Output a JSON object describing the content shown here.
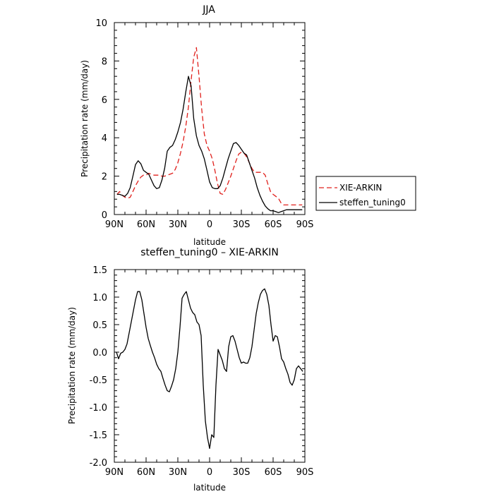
{
  "chart_data": [
    {
      "type": "line",
      "title": "JJA",
      "xlabel": "latitude",
      "ylabel": "Precipitation rate (mm/day)",
      "xlim": [
        90,
        -90
      ],
      "ylim": [
        0,
        10
      ],
      "xticks": [
        90,
        60,
        30,
        0,
        -30,
        -60,
        -90
      ],
      "xtick_labels": [
        "90N",
        "60N",
        "30N",
        "0",
        "30S",
        "60S",
        "90S"
      ],
      "yticks": [
        0,
        2,
        4,
        6,
        8,
        10
      ],
      "ytick_labels": [
        "0",
        "2",
        "4",
        "6",
        "8",
        "10"
      ],
      "legend": "right",
      "series": [
        {
          "name": "XIE-ARKIN",
          "color": "#e0201c",
          "dash": "dashed",
          "x": [
            87.5,
            85,
            82.5,
            80,
            77.5,
            75,
            72.5,
            70,
            67.5,
            65,
            62.5,
            60,
            57.5,
            55,
            52.5,
            50,
            47.5,
            45,
            42.5,
            40,
            37.5,
            35,
            32.5,
            30,
            27.5,
            25,
            22.5,
            20,
            17.5,
            15,
            12.5,
            10,
            7.5,
            5,
            2.5,
            0,
            -2.5,
            -5,
            -7.5,
            -10,
            -12.5,
            -15,
            -17.5,
            -20,
            -22.5,
            -25,
            -27.5,
            -30,
            -32.5,
            -35,
            -37.5,
            -40,
            -42.5,
            -45,
            -47.5,
            -50,
            -52.5,
            -55,
            -57.5,
            -60,
            -62.5,
            -65,
            -67.5,
            -70,
            -72.5,
            -75,
            -77.5,
            -80,
            -82.5,
            -85,
            -87.5
          ],
          "y": [
            1.05,
            1.2,
            1.0,
            0.9,
            0.85,
            0.9,
            1.2,
            1.5,
            1.75,
            1.95,
            2.05,
            2.05,
            2.15,
            2.1,
            2.05,
            2.05,
            2.05,
            2.0,
            2.0,
            2.05,
            2.1,
            2.15,
            2.35,
            2.7,
            3.2,
            3.8,
            4.6,
            5.6,
            7.0,
            8.2,
            8.7,
            7.2,
            5.5,
            4.2,
            3.6,
            3.3,
            2.9,
            2.3,
            1.6,
            1.1,
            1.05,
            1.3,
            1.65,
            2.0,
            2.4,
            2.8,
            3.15,
            3.25,
            3.2,
            3.0,
            2.7,
            2.4,
            2.2,
            2.2,
            2.2,
            2.2,
            2.05,
            1.6,
            1.2,
            1.05,
            0.95,
            0.85,
            0.6,
            0.5,
            0.5,
            0.5,
            0.5,
            0.5,
            0.5,
            0.5,
            0.5
          ]
        },
        {
          "name": "steffen_tuning0",
          "color": "#000000",
          "dash": "solid",
          "x": [
            87.5,
            85,
            82.5,
            80,
            77.5,
            75,
            72.5,
            70,
            67.5,
            65,
            62.5,
            60,
            57.5,
            55,
            52.5,
            50,
            47.5,
            45,
            42.5,
            40,
            37.5,
            35,
            32.5,
            30,
            27.5,
            25,
            22.5,
            20,
            17.5,
            15,
            12.5,
            10,
            7.5,
            5,
            2.5,
            0,
            -2.5,
            -5,
            -7.5,
            -10,
            -12.5,
            -15,
            -17.5,
            -20,
            -22.5,
            -25,
            -27.5,
            -30,
            -32.5,
            -35,
            -37.5,
            -40,
            -42.5,
            -45,
            -47.5,
            -50,
            -52.5,
            -55,
            -57.5,
            -60,
            -62.5,
            -65,
            -67.5,
            -70,
            -72.5,
            -75,
            -77.5,
            -80,
            -82.5,
            -85,
            -87.5
          ],
          "y": [
            1.05,
            1.05,
            1.0,
            0.95,
            1.1,
            1.4,
            2.0,
            2.6,
            2.8,
            2.65,
            2.3,
            2.2,
            2.1,
            1.8,
            1.5,
            1.35,
            1.4,
            1.8,
            2.4,
            3.3,
            3.5,
            3.6,
            3.9,
            4.3,
            4.8,
            5.5,
            6.4,
            7.2,
            6.7,
            5.0,
            4.1,
            3.6,
            3.3,
            2.9,
            2.3,
            1.7,
            1.4,
            1.35,
            1.35,
            1.5,
            1.9,
            2.4,
            2.9,
            3.3,
            3.7,
            3.75,
            3.6,
            3.4,
            3.2,
            3.1,
            2.7,
            2.3,
            1.9,
            1.4,
            1.0,
            0.7,
            0.45,
            0.3,
            0.2,
            0.2,
            0.15,
            0.1,
            0.15,
            0.2,
            0.25,
            0.25,
            0.25,
            0.25,
            0.25,
            0.25,
            0.25
          ]
        }
      ]
    },
    {
      "type": "line",
      "title": "steffen_tuning0 – XIE-ARKIN",
      "xlabel": "latitude",
      "ylabel": "Precipitation rate (mm/day)",
      "xlim": [
        90,
        -90
      ],
      "ylim": [
        -2.0,
        1.5
      ],
      "xticks": [
        90,
        60,
        30,
        0,
        -30,
        -60,
        -90
      ],
      "xtick_labels": [
        "90N",
        "60N",
        "30N",
        "0",
        "30S",
        "60S",
        "90S"
      ],
      "yticks": [
        -2.0,
        -1.5,
        -1.0,
        -0.5,
        0.0,
        0.5,
        1.0,
        1.5
      ],
      "ytick_labels": [
        "-2.0",
        "-1.5",
        "-1.0",
        "-0.5",
        "0.0",
        "0.5",
        "1.0",
        "1.5"
      ],
      "series": [
        {
          "color": "#000000",
          "dash": "solid",
          "x": [
            88,
            86,
            84,
            82,
            80,
            78,
            76,
            74,
            72,
            70,
            68,
            66,
            64,
            62,
            60,
            58,
            56,
            54,
            52,
            50,
            48,
            46,
            44,
            42,
            40,
            38,
            36,
            34,
            32,
            30,
            28,
            26,
            24,
            22,
            20,
            18,
            16,
            14,
            12,
            10,
            8,
            6,
            4,
            2,
            0,
            -2,
            -4,
            -6,
            -8,
            -10,
            -12,
            -14,
            -16,
            -18,
            -20,
            -22,
            -24,
            -26,
            -28,
            -30,
            -32,
            -34,
            -36,
            -38,
            -40,
            -42,
            -44,
            -46,
            -48,
            -50,
            -52,
            -54,
            -56,
            -58,
            -60,
            -62,
            -64,
            -66,
            -68,
            -70,
            -72,
            -74,
            -76,
            -78,
            -80,
            -82,
            -84,
            -86,
            -88
          ],
          "y": [
            0.0,
            -0.12,
            -0.02,
            0.0,
            0.05,
            0.15,
            0.35,
            0.55,
            0.75,
            0.95,
            1.1,
            1.1,
            0.95,
            0.7,
            0.45,
            0.25,
            0.12,
            0.0,
            -0.1,
            -0.22,
            -0.3,
            -0.35,
            -0.48,
            -0.6,
            -0.7,
            -0.72,
            -0.62,
            -0.5,
            -0.3,
            0.0,
            0.45,
            0.98,
            1.05,
            1.1,
            0.95,
            0.8,
            0.72,
            0.68,
            0.55,
            0.5,
            0.3,
            -0.6,
            -1.25,
            -1.55,
            -1.75,
            -1.5,
            -1.55,
            -0.6,
            0.05,
            -0.05,
            -0.15,
            -0.3,
            -0.35,
            0.1,
            0.28,
            0.3,
            0.2,
            0.05,
            -0.1,
            -0.2,
            -0.18,
            -0.2,
            -0.2,
            -0.1,
            0.1,
            0.4,
            0.7,
            0.9,
            1.05,
            1.12,
            1.15,
            1.05,
            0.85,
            0.5,
            0.2,
            0.3,
            0.28,
            0.1,
            -0.12,
            -0.18,
            -0.3,
            -0.4,
            -0.55,
            -0.6,
            -0.5,
            -0.3,
            -0.25,
            -0.3,
            -0.35
          ]
        }
      ]
    }
  ]
}
